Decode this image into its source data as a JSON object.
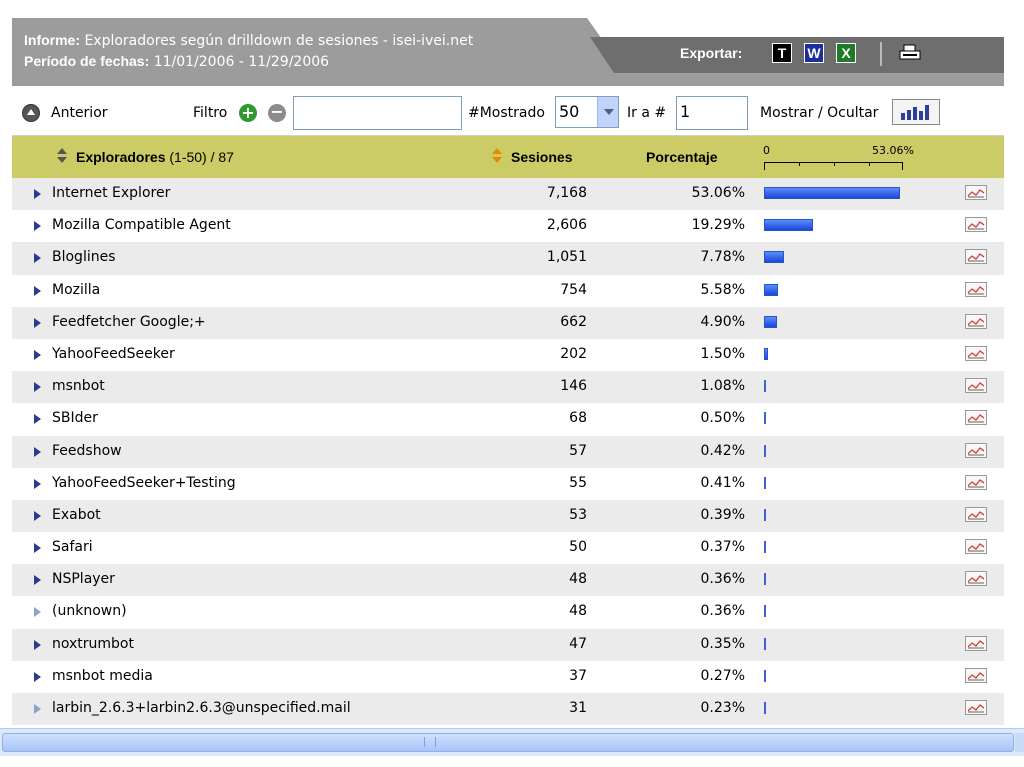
{
  "report": {
    "label_informe": "Informe:",
    "title": " Exploradores según drilldown de sesiones - isei-ivei.net",
    "label_periodo": "Período de fechas:",
    "period": " 11/01/2006 - 11/29/2006"
  },
  "export": {
    "label": "Exportar:",
    "icons": [
      "text-export-icon",
      "word-export-icon",
      "excel-export-icon",
      "print-icon"
    ],
    "t": "T",
    "w": "W",
    "x": "X"
  },
  "toolbar": {
    "prev_label": "Anterior",
    "filter_label": "Filtro",
    "filter_value": "",
    "shown_label": "#Mostrado",
    "shown_value": "50",
    "goto_label": "Ir a #",
    "goto_value": "1",
    "toggle_label": "Mostrar / Ocultar"
  },
  "columns": {
    "browsers": "Exploradores",
    "range": "(1-50) / 87",
    "sessions": "Sesiones",
    "percentage": "Porcentaje",
    "scale_min": "0",
    "scale_max": "53.06%"
  },
  "colors": {
    "header_band": "#cccc66",
    "bar_blue": "#1947d9",
    "row_alt": "#ebebeb",
    "header_grey": "#9c9c9c"
  },
  "rows": [
    {
      "name": "Internet Explorer",
      "sessions": "7,168",
      "pct": "53.06%",
      "value": 53.06,
      "trend": true
    },
    {
      "name": "Mozilla Compatible Agent",
      "sessions": "2,606",
      "pct": "19.29%",
      "value": 19.29,
      "trend": true
    },
    {
      "name": "Bloglines",
      "sessions": "1,051",
      "pct": "7.78%",
      "value": 7.78,
      "trend": true
    },
    {
      "name": "Mozilla",
      "sessions": "754",
      "pct": "5.58%",
      "value": 5.58,
      "trend": true
    },
    {
      "name": "Feedfetcher Google;+",
      "sessions": "662",
      "pct": "4.90%",
      "value": 4.9,
      "trend": true
    },
    {
      "name": "YahooFeedSeeker",
      "sessions": "202",
      "pct": "1.50%",
      "value": 1.5,
      "trend": true
    },
    {
      "name": "msnbot",
      "sessions": "146",
      "pct": "1.08%",
      "value": 1.08,
      "trend": true
    },
    {
      "name": "SBIder",
      "sessions": "68",
      "pct": "0.50%",
      "value": 0.5,
      "trend": true
    },
    {
      "name": "Feedshow",
      "sessions": "57",
      "pct": "0.42%",
      "value": 0.42,
      "trend": true
    },
    {
      "name": "YahooFeedSeeker+Testing",
      "sessions": "55",
      "pct": "0.41%",
      "value": 0.41,
      "trend": true
    },
    {
      "name": "Exabot",
      "sessions": "53",
      "pct": "0.39%",
      "value": 0.39,
      "trend": true
    },
    {
      "name": "Safari",
      "sessions": "50",
      "pct": "0.37%",
      "value": 0.37,
      "trend": true
    },
    {
      "name": "NSPlayer",
      "sessions": "48",
      "pct": "0.36%",
      "value": 0.36,
      "trend": true
    },
    {
      "name": "(unknown)",
      "sessions": "48",
      "pct": "0.36%",
      "value": 0.36,
      "trend": false,
      "muted": true
    },
    {
      "name": "noxtrumbot",
      "sessions": "47",
      "pct": "0.35%",
      "value": 0.35,
      "trend": true
    },
    {
      "name": "msnbot media",
      "sessions": "37",
      "pct": "0.27%",
      "value": 0.27,
      "trend": true
    },
    {
      "name": "larbin_2.6.3+larbin2.6.3@unspecified.mail",
      "sessions": "31",
      "pct": "0.23%",
      "value": 0.23,
      "trend": true,
      "muted": true
    }
  ]
}
